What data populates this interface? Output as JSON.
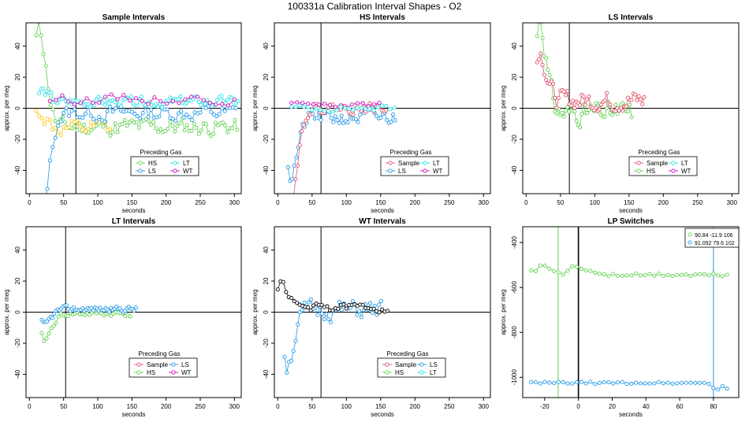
{
  "figure_title": "100331a   Calibration Interval Shapes - O2",
  "colors": {
    "Sample": "#df536b",
    "HS": "#61d04f",
    "LS": "#2297e6",
    "LT": "#28e2e5",
    "WT": "#cd0bbc",
    "gold": "#f5c710",
    "black": "#000000"
  },
  "chart_data": [
    {
      "id": "sample",
      "type": "scatter",
      "title": "Sample Intervals",
      "xlabel": "seconds",
      "ylabel": "approx. per meg",
      "xlim": [
        -5,
        310
      ],
      "ylim": [
        -55,
        55
      ],
      "xticks": [
        0,
        50,
        100,
        150,
        200,
        250,
        300
      ],
      "yticks": [
        -40,
        -20,
        0,
        20,
        40
      ],
      "vline": 68,
      "hline": 0,
      "legend": {
        "title": "Preceding Gas",
        "entries": [
          {
            "label": "HS",
            "color": "HS"
          },
          {
            "label": "LT",
            "color": "LT"
          },
          {
            "label": "LS",
            "color": "LS"
          },
          {
            "label": "WT",
            "color": "WT"
          }
        ]
      },
      "series": [
        {
          "name": "HS",
          "color": "HS",
          "start": 10,
          "end": 305,
          "step": 3.5,
          "base": -12,
          "spread": 9,
          "spike": 55,
          "spikeDir": 1,
          "seed": 11
        },
        {
          "name": "gold",
          "color": "gold",
          "start": 10,
          "end": 120,
          "step": 4,
          "base": -14,
          "spread": 9,
          "spike": 10,
          "spikeDir": 1,
          "seed": 12
        },
        {
          "name": "LS",
          "color": "LS",
          "start": 14,
          "end": 305,
          "step": 4,
          "base": -3,
          "spread": 8,
          "spike": 55,
          "spikeDir": -1,
          "seed": 13
        },
        {
          "name": "LT",
          "color": "LT",
          "start": 14,
          "end": 305,
          "step": 3,
          "base": 4,
          "spread": 5,
          "spike": 6,
          "spikeDir": 1,
          "seed": 14
        },
        {
          "name": "WT",
          "color": "WT",
          "start": 30,
          "end": 305,
          "step": 9,
          "base": 6,
          "spread": 5,
          "spike": 0,
          "spikeDir": 1,
          "seed": 15
        }
      ]
    },
    {
      "id": "hs",
      "type": "scatter",
      "title": "HS Intervals",
      "xlabel": "seconds",
      "ylabel": "approx. per meg",
      "xlim": [
        -5,
        310
      ],
      "ylim": [
        -55,
        55
      ],
      "xticks": [
        0,
        50,
        100,
        150,
        200,
        250,
        300
      ],
      "yticks": [
        -40,
        -20,
        0,
        20,
        40
      ],
      "vline": 63,
      "hline": 0,
      "legend": {
        "title": "Preceding Gas",
        "entries": [
          {
            "label": "Sample",
            "color": "Sample"
          },
          {
            "label": "LT",
            "color": "LT"
          },
          {
            "label": "LS",
            "color": "LS"
          },
          {
            "label": "WT",
            "color": "WT"
          }
        ]
      },
      "series": [
        {
          "name": "LS",
          "color": "LS",
          "start": 15,
          "end": 172,
          "step": 3,
          "base": -6,
          "spread": 8,
          "spike": 30,
          "spikeDir": -1,
          "seed": 21
        },
        {
          "name": "Sample",
          "color": "Sample",
          "start": 14,
          "end": 158,
          "step": 3,
          "base": 0,
          "spread": 5,
          "spike": 55,
          "spikeDir": -1,
          "seed": 22
        },
        {
          "name": "WT",
          "color": "WT",
          "start": 20,
          "end": 150,
          "step": 8,
          "base": 2,
          "spread": 3,
          "spike": 0,
          "spikeDir": 1,
          "seed": 23
        },
        {
          "name": "LT",
          "color": "LT",
          "start": 20,
          "end": 172,
          "step": 6,
          "base": 0,
          "spread": 3,
          "spike": 0,
          "spikeDir": 1,
          "seed": 24
        }
      ]
    },
    {
      "id": "ls",
      "type": "scatter",
      "title": "LS Intervals",
      "xlabel": "seconds",
      "ylabel": "approx. per meg",
      "xlim": [
        -5,
        310
      ],
      "ylim": [
        -55,
        55
      ],
      "xticks": [
        0,
        50,
        100,
        150,
        200,
        250,
        300
      ],
      "yticks": [
        -40,
        -20,
        0,
        20,
        40
      ],
      "vline": 63,
      "hline": 0,
      "legend": {
        "title": "Preceding Gas",
        "entries": [
          {
            "label": "Sample",
            "color": "Sample"
          },
          {
            "label": "LT",
            "color": "LT"
          },
          {
            "label": "HS",
            "color": "HS"
          },
          {
            "label": "WT",
            "color": "WT"
          }
        ]
      },
      "series": [
        {
          "name": "HS",
          "color": "HS",
          "start": 16,
          "end": 155,
          "step": 2.6,
          "base": -3,
          "spread": 11,
          "spike": 48,
          "spikeDir": 1,
          "seed": 31
        },
        {
          "name": "Sample",
          "color": "Sample",
          "start": 16,
          "end": 172,
          "step": 2.6,
          "base": 5,
          "spread": 10,
          "spike": 25,
          "spikeDir": 1,
          "seed": 32
        }
      ]
    },
    {
      "id": "lt",
      "type": "scatter",
      "title": "LT Intervals",
      "xlabel": "seconds",
      "ylabel": "approx. per meg",
      "xlim": [
        -5,
        310
      ],
      "ylim": [
        -55,
        55
      ],
      "xticks": [
        0,
        50,
        100,
        150,
        200,
        250,
        300
      ],
      "yticks": [
        -40,
        -20,
        0,
        20,
        40
      ],
      "vline": 53,
      "hline": 0,
      "legend": {
        "title": "Preceding Gas",
        "entries": [
          {
            "label": "Sample",
            "color": "Sample"
          },
          {
            "label": "LS",
            "color": "LS"
          },
          {
            "label": "HS",
            "color": "HS"
          },
          {
            "label": "WT",
            "color": "WT"
          }
        ]
      },
      "series": [
        {
          "name": "HS",
          "color": "HS",
          "start": 18,
          "end": 150,
          "step": 3.5,
          "base": -1,
          "spread": 3,
          "spike": 14,
          "spikeDir": -1,
          "seed": 41
        },
        {
          "name": "LS",
          "color": "LS",
          "start": 18,
          "end": 157,
          "step": 2.6,
          "base": 2,
          "spread": 3,
          "spike": 8,
          "spikeDir": -1,
          "seed": 42
        }
      ]
    },
    {
      "id": "wt",
      "type": "scatter",
      "title": "WT Intervals",
      "xlabel": "seconds",
      "ylabel": "approx. per meg",
      "xlim": [
        -5,
        310
      ],
      "ylim": [
        -55,
        55
      ],
      "xticks": [
        0,
        50,
        100,
        150,
        200,
        250,
        300
      ],
      "yticks": [
        -40,
        -20,
        0,
        20,
        40
      ],
      "vline": 63,
      "hline": 0,
      "legend": {
        "title": "Preceding Gas",
        "entries": [
          {
            "label": "Sample",
            "color": "Sample"
          },
          {
            "label": "LS",
            "color": "LS"
          },
          {
            "label": "HS",
            "color": "HS"
          },
          {
            "label": "LT",
            "color": "LT"
          }
        ]
      },
      "series": [
        {
          "name": "LS",
          "color": "LS",
          "start": 10,
          "end": 152,
          "step": 3.2,
          "base": 1,
          "spread": 10,
          "spike": 28,
          "spikeDir": -1,
          "seed": 51
        },
        {
          "name": "black",
          "color": "black",
          "start": 0,
          "end": 160,
          "step": 4,
          "base": 3,
          "spread": 4,
          "spike": 13,
          "spikeDir": 1,
          "seed": 52
        }
      ]
    },
    {
      "id": "lp",
      "type": "scatter",
      "title": "LP Switches",
      "xlabel": "",
      "ylabel": "approx. per meg",
      "xlim": [
        -33,
        95
      ],
      "ylim": [
        -1090,
        -330
      ],
      "xticks": [
        -20,
        0,
        20,
        40,
        60,
        80
      ],
      "yticks": [
        -400,
        -600,
        -800,
        -1000
      ],
      "vline": 0,
      "vline2": [
        {
          "x": -12,
          "color": "HS"
        },
        {
          "x": 80,
          "color": "LS"
        }
      ],
      "legend_entries": [
        {
          "label": "90.84 -11.9 106",
          "color": "HS"
        },
        {
          "label": "91.092 79.6 102",
          "color": "LS"
        }
      ],
      "series": [
        {
          "name": "green",
          "color": "HS",
          "kind": "lp_green",
          "start": -28,
          "end": 89,
          "step": 2.7
        },
        {
          "name": "blue",
          "color": "LS",
          "kind": "lp_blue",
          "start": -28,
          "end": 89,
          "step": 2.7
        }
      ]
    }
  ],
  "lp_extra_label": "seconds"
}
